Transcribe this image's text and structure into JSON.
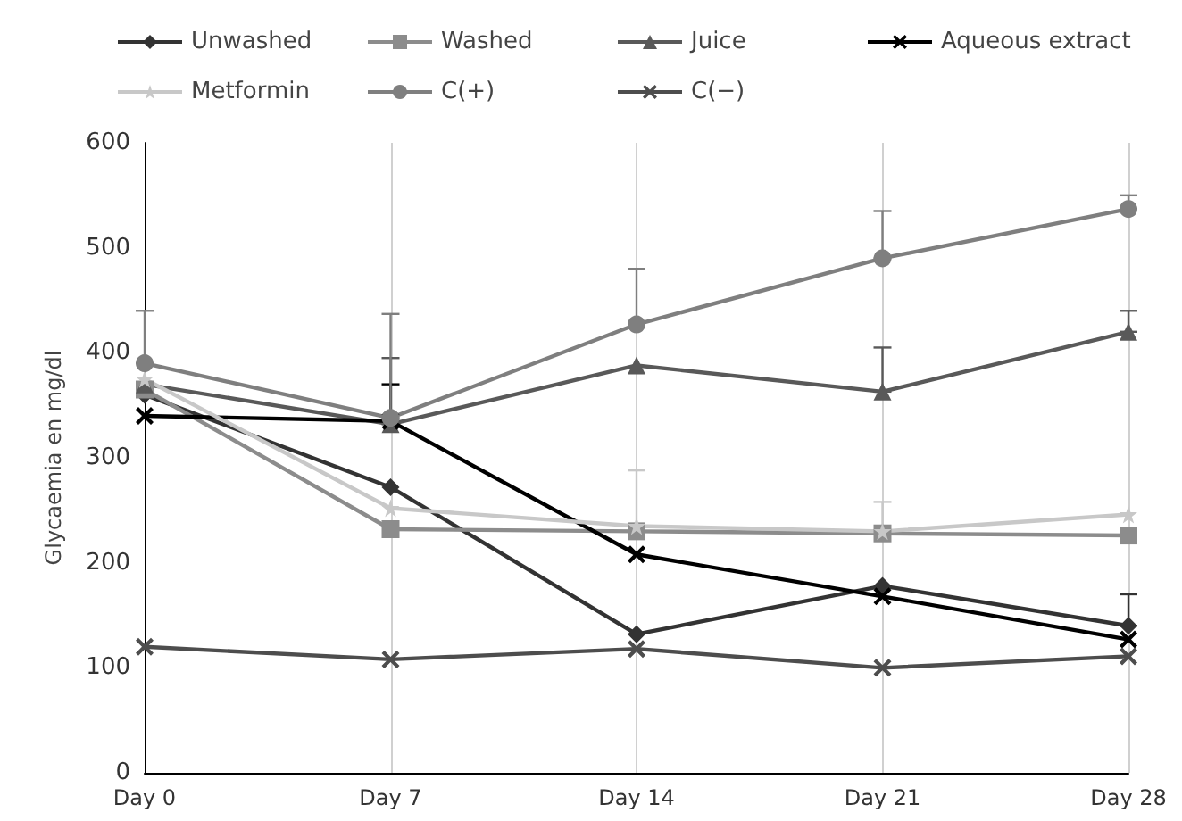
{
  "chart_data": {
    "type": "line",
    "ylabel": "Glycaemia en mg/dl",
    "categories": [
      "Day 0",
      "Day 7",
      "Day 14",
      "Day 21",
      "Day 28"
    ],
    "series": [
      {
        "name": "Unwashed",
        "color": "#333333",
        "marker": "diamond",
        "values": [
          360,
          272,
          132,
          178,
          140
        ],
        "errors": [
          null,
          null,
          null,
          null,
          [
            140,
            170
          ]
        ]
      },
      {
        "name": "Washed",
        "color": "#8c8c8c",
        "marker": "square",
        "values": [
          365,
          232,
          230,
          228,
          226
        ]
      },
      {
        "name": "Juice",
        "color": "#595959",
        "marker": "triangle",
        "values": [
          370,
          332,
          388,
          363,
          420
        ],
        "errors": [
          null,
          [
            332,
            395
          ],
          null,
          [
            363,
            405
          ],
          [
            420,
            440
          ]
        ]
      },
      {
        "name": "Aqueous extract",
        "color": "#000000",
        "marker": "cross",
        "values": [
          340,
          335,
          208,
          168,
          127
        ],
        "errors": [
          null,
          [
            335,
            370
          ],
          null,
          null,
          null
        ]
      },
      {
        "name": "Metformin",
        "color": "#c8c8c8",
        "marker": "star",
        "values": [
          375,
          252,
          235,
          230,
          246
        ],
        "errors": [
          null,
          null,
          [
            235,
            288
          ],
          [
            230,
            258
          ],
          null
        ]
      },
      {
        "name": "C(+)",
        "color": "#7f7f7f",
        "marker": "circle",
        "values": [
          390,
          338,
          427,
          490,
          537
        ],
        "errors": [
          [
            390,
            440
          ],
          [
            338,
            437
          ],
          [
            427,
            480
          ],
          [
            490,
            535
          ],
          [
            537,
            550
          ]
        ]
      },
      {
        "name": "C(−)",
        "color": "#4d4d4d",
        "marker": "cross",
        "values": [
          120,
          108,
          118,
          100,
          111
        ]
      }
    ],
    "ylim": [
      0,
      600
    ],
    "yticks": [
      0,
      100,
      200,
      300,
      400,
      500,
      600
    ],
    "grid": "x",
    "legend": "top"
  }
}
